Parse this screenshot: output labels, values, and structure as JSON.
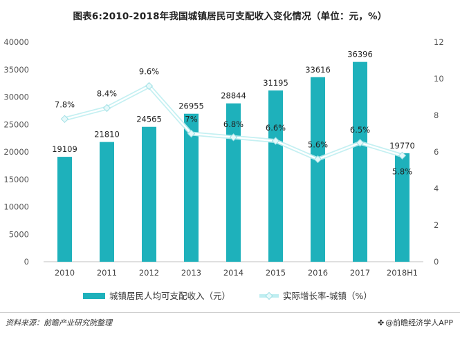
{
  "chart_data": {
    "type": "bar",
    "title": "图表6:2010-2018年我国城镇居民可支配收入变化情况（单位：元，%）",
    "categories": [
      "2010",
      "2011",
      "2012",
      "2013",
      "2014",
      "2015",
      "2016",
      "2017",
      "2018H1"
    ],
    "series": [
      {
        "name": "城镇居民人均可支配收入（元）",
        "type": "bar",
        "axis": "left",
        "color": "#1eb1bb",
        "values": [
          19109,
          21810,
          24565,
          26955,
          28844,
          31195,
          33616,
          36396,
          19770
        ],
        "labels": [
          "19109",
          "21810",
          "24565",
          "26955",
          "28844",
          "31195",
          "33616",
          "36396",
          "19770"
        ]
      },
      {
        "name": "实际增长率-城镇（%）",
        "type": "line",
        "axis": "right",
        "color": "#d8f4f6",
        "values": [
          7.8,
          8.4,
          9.6,
          7.0,
          6.8,
          6.6,
          5.6,
          6.5,
          5.8
        ],
        "labels": [
          "7.8%",
          "8.4%",
          "9.6%",
          "7%",
          "6.8%",
          "6.6%",
          "5.6%",
          "6.5%",
          "5.8%"
        ]
      }
    ],
    "left_axis": {
      "ylim": [
        0,
        40000
      ],
      "ticks": [
        "0",
        "5000",
        "10000",
        "15000",
        "20000",
        "25000",
        "30000",
        "35000",
        "40000"
      ]
    },
    "right_axis": {
      "ylim": [
        0,
        12
      ],
      "ticks": [
        "0",
        "2",
        "4",
        "6",
        "8",
        "10",
        "12"
      ]
    },
    "grid": false,
    "legend_position": "bottom"
  },
  "footer": {
    "source": "资料来源：前瞻产业研究院整理",
    "brand": "@前瞻经济学人APP",
    "brand_logo": "logo-icon"
  }
}
